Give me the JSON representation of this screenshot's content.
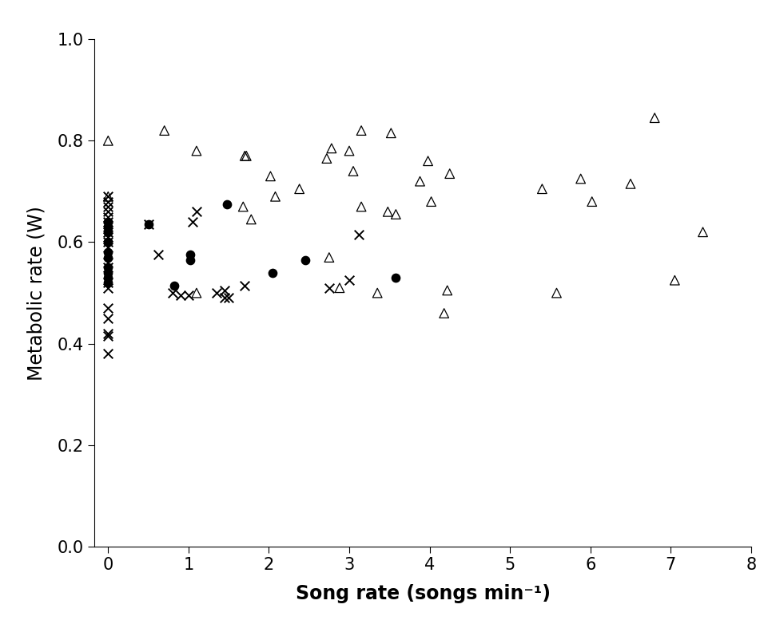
{
  "chart_data": {
    "type": "scatter",
    "x_label": "Song rate (songs min⁻¹)",
    "y_label": "Metabolic rate (W)",
    "xlim": [
      -0.17,
      8
    ],
    "xticks": [
      0,
      1,
      2,
      3,
      4,
      5,
      6,
      7,
      8
    ],
    "ylim": [
      0.0,
      1.0
    ],
    "yticks": [
      0.0,
      0.2,
      0.4,
      0.6,
      0.8,
      1.0
    ],
    "grid": false,
    "series": [
      {
        "color": "#000000",
        "marker": "triangle",
        "x": [
          0,
          0,
          0.7,
          1.1,
          1.1,
          1.7,
          1.72,
          1.68,
          1.78,
          2.02,
          2.08,
          2.38,
          2.72,
          2.78,
          2.75,
          2.88,
          3.0,
          3.05,
          3.15,
          3.15,
          3.35,
          3.48,
          3.52,
          3.58,
          3.88,
          3.98,
          4.02,
          4.18,
          4.22,
          4.25,
          5.4,
          5.58,
          5.88,
          6.02,
          6.5,
          6.8,
          7.05,
          7.4
        ],
        "values": [
          0.8,
          0.69,
          0.82,
          0.78,
          0.5,
          0.77,
          0.77,
          0.67,
          0.645,
          0.73,
          0.69,
          0.705,
          0.765,
          0.785,
          0.57,
          0.51,
          0.78,
          0.74,
          0.82,
          0.67,
          0.5,
          0.66,
          0.815,
          0.655,
          0.72,
          0.76,
          0.68,
          0.46,
          0.505,
          0.735,
          0.705,
          0.5,
          0.725,
          0.68,
          0.715,
          0.845,
          0.525,
          0.62
        ]
      },
      {
        "color": "#000000",
        "marker": "circle",
        "x": [
          0,
          0,
          0,
          0,
          0,
          0,
          0,
          0,
          0,
          0,
          0.5,
          0.82,
          1.02,
          1.02,
          1.48,
          2.05,
          2.45,
          3.58
        ],
        "values": [
          0.64,
          0.63,
          0.62,
          0.6,
          0.58,
          0.57,
          0.55,
          0.54,
          0.53,
          0.52,
          0.635,
          0.515,
          0.575,
          0.565,
          0.675,
          0.54,
          0.565,
          0.53
        ]
      },
      {
        "color": "#000000",
        "marker": "cross",
        "x": [
          0,
          0,
          0,
          0,
          0,
          0,
          0,
          0,
          0,
          0,
          0,
          0,
          0,
          0,
          0,
          0,
          0,
          0,
          0,
          0,
          0.5,
          0.62,
          0.8,
          0.9,
          1.0,
          1.05,
          1.1,
          1.35,
          1.45,
          1.45,
          1.5,
          1.7,
          2.75,
          3.0,
          3.12
        ],
        "values": [
          0.69,
          0.68,
          0.67,
          0.66,
          0.65,
          0.64,
          0.63,
          0.62,
          0.61,
          0.6,
          0.59,
          0.56,
          0.55,
          0.52,
          0.51,
          0.47,
          0.45,
          0.42,
          0.415,
          0.38,
          0.635,
          0.575,
          0.5,
          0.495,
          0.495,
          0.64,
          0.66,
          0.5,
          0.49,
          0.505,
          0.49,
          0.515,
          0.51,
          0.525,
          0.615
        ]
      }
    ]
  }
}
